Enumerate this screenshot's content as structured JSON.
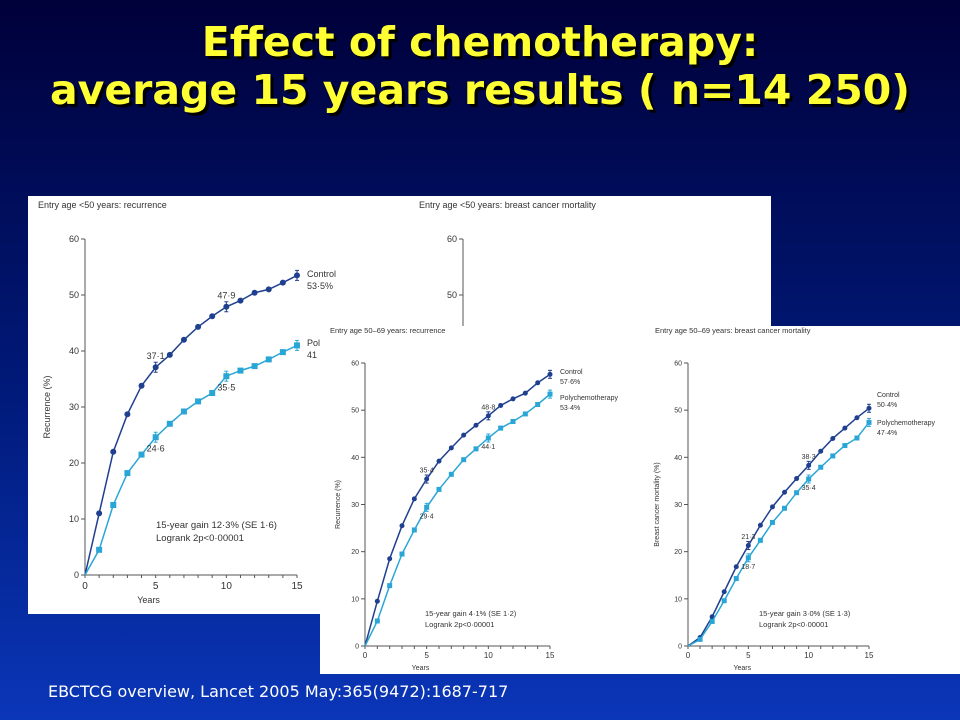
{
  "slide": {
    "title_line1": "Effect of chemotherapy:",
    "title_line2": "average 15 years results ( n=14 250)",
    "citation": "EBCTCG overview, Lancet 2005 May:365(9472):1687-717"
  },
  "colors": {
    "control": "#1f3f8f",
    "poly": "#2aa6d6"
  },
  "chart_data": [
    {
      "type": "line",
      "title": "Entry age <50 years: recurrence",
      "xlabel": "Years",
      "ylabel": "Recurrence (%)",
      "xlim": [
        0,
        15
      ],
      "ylim": [
        0,
        60
      ],
      "xticks": [
        0,
        5,
        10,
        15
      ],
      "yticks": [
        0,
        10,
        20,
        30,
        40,
        50,
        60
      ],
      "grid": false,
      "x": [
        0,
        1,
        2,
        3,
        4,
        5,
        6,
        7,
        8,
        9,
        10,
        11,
        12,
        13,
        14,
        15
      ],
      "series": [
        {
          "name": "Control",
          "end_label": "Control",
          "end_value": "53·5%",
          "values": [
            0,
            11,
            22,
            28.7,
            33.8,
            37.1,
            39.3,
            42,
            44.3,
            46.2,
            47.9,
            49,
            50.4,
            51,
            52.2,
            53.5
          ]
        },
        {
          "name": "Polychemotherapy",
          "end_label": "Pol",
          "end_value": "41",
          "values": [
            0,
            4.5,
            12.5,
            18.2,
            21.5,
            24.6,
            27,
            29.2,
            31,
            32.5,
            35.5,
            36.5,
            37.3,
            38.5,
            39.8,
            41
          ]
        }
      ],
      "annotations": [
        {
          "x": 5,
          "y": 37.1,
          "text": "37·1"
        },
        {
          "x": 10,
          "y": 47.9,
          "text": "47·9"
        },
        {
          "x": 5,
          "y": 24.6,
          "text": "24·6"
        },
        {
          "x": 10,
          "y": 35.5,
          "text": "35·5"
        }
      ],
      "notes": [
        "15-year gain 12·3% (SE 1·6)",
        "Logrank 2p<0·00001"
      ]
    },
    {
      "type": "line",
      "title": "Entry age <50 years: breast cancer mortality",
      "partially_hidden": true,
      "ylim": [
        0,
        60
      ],
      "yticks": [
        50,
        60
      ],
      "series": []
    },
    {
      "type": "line",
      "title": "Entry age 50–69 years: recurrence",
      "xlabel": "Years",
      "ylabel": "Recurrence (%)",
      "xlim": [
        0,
        15
      ],
      "ylim": [
        0,
        60
      ],
      "xticks": [
        0,
        5,
        10,
        15
      ],
      "yticks": [
        0,
        10,
        20,
        30,
        40,
        50,
        60
      ],
      "grid": false,
      "x": [
        0,
        1,
        2,
        3,
        4,
        5,
        6,
        7,
        8,
        9,
        10,
        11,
        12,
        13,
        14,
        15
      ],
      "series": [
        {
          "name": "Control",
          "end_label": "Control",
          "end_value": "57·6%",
          "values": [
            0,
            9.5,
            18.5,
            25.5,
            31.2,
            35.4,
            39.2,
            42,
            44.7,
            46.8,
            48.8,
            51,
            52.4,
            53.6,
            55.8,
            57.6
          ]
        },
        {
          "name": "Polychemotherapy",
          "end_label": "Polychemotherapy",
          "end_value": "53·4%",
          "values": [
            0,
            5.3,
            12.8,
            19.5,
            24.6,
            29.4,
            33.2,
            36.4,
            39.5,
            41.8,
            44.1,
            46.2,
            47.6,
            49.2,
            51.2,
            53.4
          ]
        }
      ],
      "annotations": [
        {
          "x": 5,
          "y": 35.4,
          "text": "35·4"
        },
        {
          "x": 10,
          "y": 48.8,
          "text": "48·8"
        },
        {
          "x": 5,
          "y": 29.4,
          "text": "29·4"
        },
        {
          "x": 10,
          "y": 44.1,
          "text": "44·1"
        }
      ],
      "notes": [
        "15-year gain 4·1% (SE 1·2)",
        "Logrank 2p<0·00001"
      ]
    },
    {
      "type": "line",
      "title": "Entry age 50–69 years: breast cancer mortality",
      "xlabel": "Years",
      "ylabel": "Breast cancer mortality (%)",
      "xlim": [
        0,
        15
      ],
      "ylim": [
        0,
        60
      ],
      "xticks": [
        0,
        5,
        10,
        15
      ],
      "yticks": [
        0,
        10,
        20,
        30,
        40,
        50,
        60
      ],
      "grid": false,
      "x": [
        0,
        1,
        2,
        3,
        4,
        5,
        6,
        7,
        8,
        9,
        10,
        11,
        12,
        13,
        14,
        15
      ],
      "series": [
        {
          "name": "Control",
          "end_label": "Control",
          "end_value": "50·4%",
          "values": [
            0,
            1.8,
            6.2,
            11.5,
            16.8,
            21.3,
            25.6,
            29.5,
            32.6,
            35.5,
            38.3,
            41.3,
            44,
            46.2,
            48.4,
            50.4
          ]
        },
        {
          "name": "Polychemotherapy",
          "end_label": "Polychemotherapy",
          "end_value": "47·4%",
          "values": [
            0,
            1.4,
            5.2,
            9.6,
            14.3,
            18.7,
            22.4,
            26.2,
            29.2,
            32.5,
            35.4,
            37.9,
            40.3,
            42.5,
            44.1,
            47.4
          ]
        }
      ],
      "annotations": [
        {
          "x": 5,
          "y": 21.3,
          "text": "21·3"
        },
        {
          "x": 10,
          "y": 38.3,
          "text": "38·3"
        },
        {
          "x": 5,
          "y": 18.7,
          "text": "18·7"
        },
        {
          "x": 10,
          "y": 35.4,
          "text": "35·4"
        }
      ],
      "notes": [
        "15-year gain 3·0% (SE 1·3)",
        "Logrank 2p<0·00001"
      ]
    }
  ]
}
